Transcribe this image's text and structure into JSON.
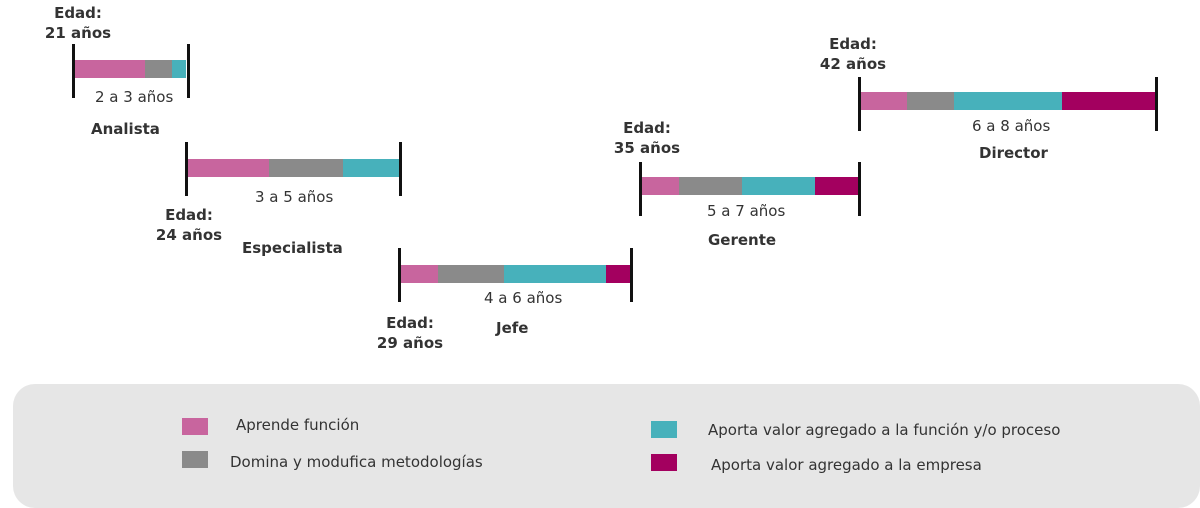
{
  "colors": {
    "aprende": "#c8659e",
    "domina": "#8a8a8a",
    "aporta_funcion": "#47b1bb",
    "aporta_empresa": "#a3005f"
  },
  "stages": [
    {
      "age_label": "Edad:",
      "age_value": "21 años",
      "duration": "2 a 3 años",
      "role": "Analista",
      "segments": [
        "aprende",
        "domina",
        "aporta_funcion"
      ]
    },
    {
      "age_label": "Edad:",
      "age_value": "24 años",
      "duration": "3 a 5 años",
      "role": "Especialista",
      "segments": [
        "aprende",
        "domina",
        "aporta_funcion"
      ]
    },
    {
      "age_label": "Edad:",
      "age_value": "29 años",
      "duration": "4 a 6 años",
      "role": "Jefe",
      "segments": [
        "aprende",
        "domina",
        "aporta_funcion",
        "aporta_empresa"
      ]
    },
    {
      "age_label": "Edad:",
      "age_value": "35 años",
      "duration": "5 a 7 años",
      "role": "Gerente",
      "segments": [
        "aprende",
        "domina",
        "aporta_funcion",
        "aporta_empresa"
      ]
    },
    {
      "age_label": "Edad:",
      "age_value": "42 años",
      "duration": "6 a 8 años",
      "role": "Director",
      "segments": [
        "aprende",
        "domina",
        "aporta_funcion",
        "aporta_empresa"
      ]
    }
  ],
  "legend": [
    {
      "key": "aprende",
      "label": "Aprende función"
    },
    {
      "key": "domina",
      "label": "Domina y modufica metodologías"
    },
    {
      "key": "aporta_funcion",
      "label": "Aporta valor agregado a la función y/o proceso"
    },
    {
      "key": "aporta_empresa",
      "label": "Aporta valor agregado a la empresa"
    }
  ]
}
